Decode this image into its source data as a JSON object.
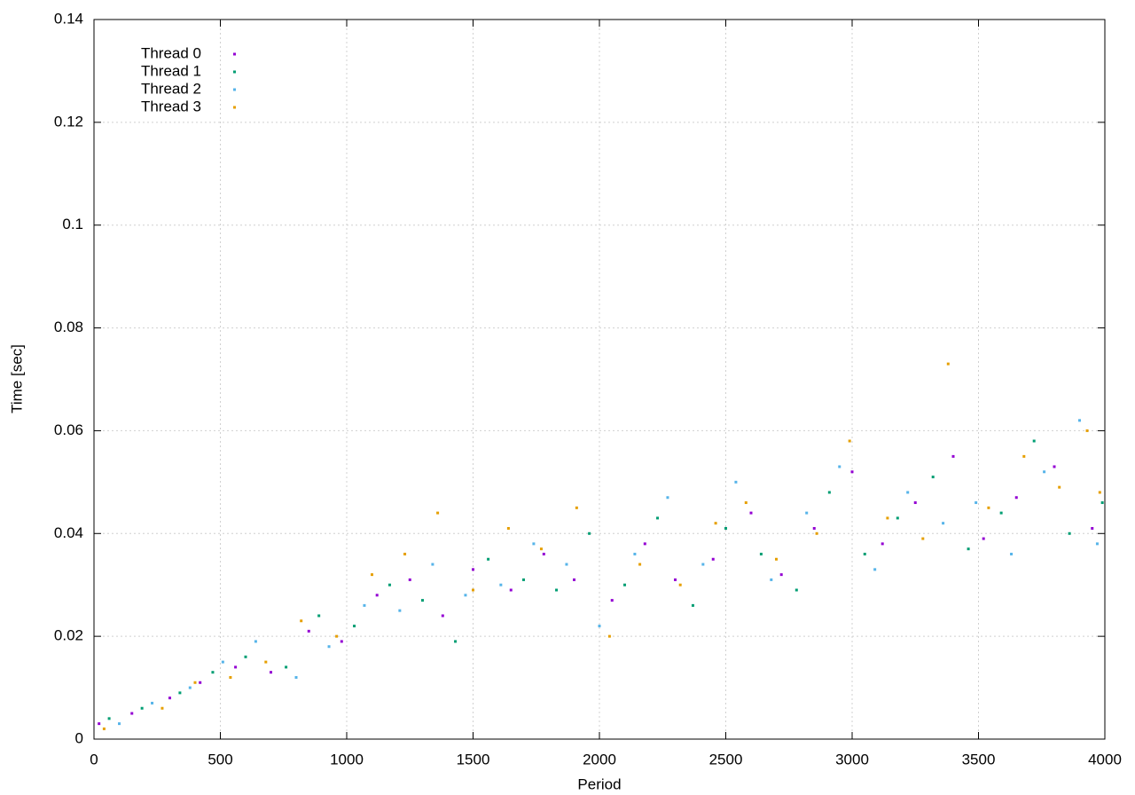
{
  "chart_data": {
    "type": "scatter",
    "xlabel": "Period",
    "ylabel": "Time [sec]",
    "xlim": [
      0,
      4000
    ],
    "xticks": [
      0,
      500,
      1000,
      1500,
      2000,
      2500,
      3000,
      3500,
      4000
    ],
    "ylim": [
      0,
      0.14
    ],
    "yticks": [
      0,
      0.02,
      0.04,
      0.06,
      0.08,
      0.1,
      0.12,
      0.14
    ],
    "grid": true,
    "legend": "top-left",
    "series": [
      {
        "name": "Thread 0",
        "color": "#9400d3",
        "x": [
          20,
          150,
          300,
          420,
          560,
          700,
          850,
          980,
          1120,
          1250,
          1380,
          1500,
          1650,
          1780,
          1900,
          2050,
          2180,
          2300,
          2450,
          2600,
          2720,
          2850,
          3000,
          3120,
          3250,
          3400,
          3520,
          3650,
          3800,
          3950
        ],
        "values": [
          0.003,
          0.005,
          0.008,
          0.011,
          0.014,
          0.013,
          0.021,
          0.019,
          0.028,
          0.031,
          0.024,
          0.033,
          0.029,
          0.036,
          0.031,
          0.027,
          0.038,
          0.031,
          0.035,
          0.044,
          0.032,
          0.041,
          0.052,
          0.038,
          0.046,
          0.055,
          0.039,
          0.047,
          0.053,
          0.041
        ]
      },
      {
        "name": "Thread 1",
        "color": "#009e73",
        "x": [
          60,
          190,
          340,
          470,
          600,
          760,
          890,
          1030,
          1170,
          1300,
          1430,
          1560,
          1700,
          1830,
          1960,
          2100,
          2230,
          2370,
          2500,
          2640,
          2780,
          2910,
          3050,
          3180,
          3320,
          3460,
          3590,
          3720,
          3860,
          3990
        ],
        "values": [
          0.004,
          0.006,
          0.009,
          0.013,
          0.016,
          0.014,
          0.024,
          0.022,
          0.03,
          0.027,
          0.019,
          0.035,
          0.031,
          0.029,
          0.04,
          0.03,
          0.043,
          0.026,
          0.041,
          0.036,
          0.029,
          0.048,
          0.036,
          0.043,
          0.051,
          0.037,
          0.044,
          0.058,
          0.04,
          0.046
        ]
      },
      {
        "name": "Thread 2",
        "color": "#56b4e9",
        "x": [
          100,
          230,
          380,
          510,
          640,
          800,
          930,
          1070,
          1210,
          1340,
          1470,
          1610,
          1740,
          1870,
          2000,
          2140,
          2270,
          2410,
          2540,
          2680,
          2820,
          2950,
          3090,
          3220,
          3360,
          3490,
          3630,
          3760,
          3900,
          3970
        ],
        "values": [
          0.003,
          0.007,
          0.01,
          0.015,
          0.019,
          0.012,
          0.018,
          0.026,
          0.025,
          0.034,
          0.028,
          0.03,
          0.038,
          0.034,
          0.022,
          0.036,
          0.047,
          0.034,
          0.05,
          0.031,
          0.044,
          0.053,
          0.033,
          0.048,
          0.042,
          0.046,
          0.036,
          0.052,
          0.062,
          0.038
        ]
      },
      {
        "name": "Thread 3",
        "color": "#e69f00",
        "x": [
          40,
          270,
          400,
          540,
          680,
          820,
          960,
          1100,
          1230,
          1360,
          1500,
          1640,
          1770,
          1910,
          2040,
          2160,
          2320,
          2460,
          2580,
          2700,
          2860,
          2990,
          3140,
          3280,
          3380,
          3540,
          3680,
          3820,
          3930,
          3980
        ],
        "values": [
          0.002,
          0.006,
          0.011,
          0.012,
          0.015,
          0.023,
          0.02,
          0.032,
          0.036,
          0.044,
          0.029,
          0.041,
          0.037,
          0.045,
          0.02,
          0.034,
          0.03,
          0.042,
          0.046,
          0.035,
          0.04,
          0.058,
          0.043,
          0.039,
          0.073,
          0.045,
          0.055,
          0.049,
          0.06,
          0.048
        ]
      }
    ]
  }
}
